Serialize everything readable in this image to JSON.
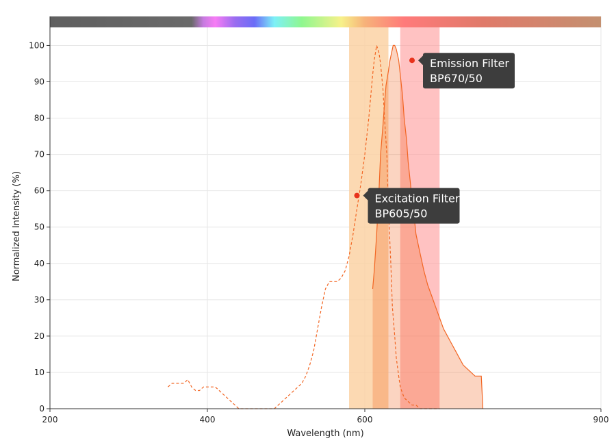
{
  "chart_data": {
    "type": "line",
    "xlabel": "Wavelength (nm)",
    "ylabel": "Normalized Intensity (%)",
    "xlim": [
      200,
      900
    ],
    "ylim": [
      0,
      108
    ],
    "x_ticks": [
      200,
      400,
      600,
      900
    ],
    "y_ticks": [
      0,
      10,
      20,
      30,
      40,
      50,
      60,
      70,
      80,
      90,
      100
    ],
    "grid": true,
    "spectrum_bar": {
      "start": 200,
      "end": 900,
      "colors": [
        {
          "at": 200,
          "color": "#5f5f5f"
        },
        {
          "at": 380,
          "color": "#6a6a6a"
        },
        {
          "at": 395,
          "color": "#c77be0"
        },
        {
          "at": 410,
          "color": "#f77df5"
        },
        {
          "at": 435,
          "color": "#9a6df0"
        },
        {
          "at": 460,
          "color": "#6b6df7"
        },
        {
          "at": 485,
          "color": "#7df0f7"
        },
        {
          "at": 520,
          "color": "#8ff78f"
        },
        {
          "at": 570,
          "color": "#f7f18a"
        },
        {
          "at": 600,
          "color": "#f7b27a"
        },
        {
          "at": 650,
          "color": "#ff7a7a"
        },
        {
          "at": 750,
          "color": "#e07a6a"
        },
        {
          "at": 900,
          "color": "#c49070"
        }
      ]
    },
    "filters": [
      {
        "name": "Excitation Filter",
        "code": "BP605/50",
        "start": 580,
        "end": 630,
        "color": "#fbcf9f",
        "opacity": 0.8
      },
      {
        "name": "Emission Filter",
        "code": "BP670/50",
        "start": 645,
        "end": 695,
        "color": "#ff9a9a",
        "opacity": 0.6
      }
    ],
    "series": [
      {
        "type": "excitation",
        "style": "dashed",
        "color": "#f26522",
        "x": [
          350,
          355,
          360,
          365,
          370,
          375,
          380,
          385,
          390,
          395,
          400,
          405,
          410,
          415,
          420,
          425,
          430,
          435,
          440,
          445,
          450,
          455,
          460,
          465,
          470,
          475,
          480,
          485,
          490,
          495,
          500,
          505,
          510,
          515,
          520,
          525,
          530,
          535,
          540,
          545,
          550,
          555,
          560,
          565,
          570,
          575,
          580,
          585,
          590,
          595,
          600,
          605,
          610,
          612,
          615,
          618,
          620,
          623,
          625,
          628,
          630,
          633,
          635,
          638,
          640,
          643,
          645,
          650,
          655,
          660,
          665,
          670,
          675,
          680,
          685,
          690,
          695
        ],
        "y": [
          6,
          7,
          7,
          7,
          7,
          8,
          6,
          5,
          5,
          6,
          6,
          6,
          6,
          5,
          4,
          3,
          2,
          1,
          0,
          0,
          0,
          0,
          0,
          0,
          0,
          0,
          0,
          0,
          1,
          2,
          3,
          4,
          5,
          6,
          7,
          9,
          12,
          16,
          22,
          28,
          33,
          35,
          35,
          35,
          36,
          38,
          42,
          48,
          55,
          62,
          70,
          80,
          92,
          96,
          100,
          98,
          95,
          88,
          80,
          70,
          55,
          40,
          28,
          20,
          14,
          9,
          6,
          3,
          2,
          1,
          1,
          0,
          0,
          0,
          0,
          0,
          0
        ]
      },
      {
        "type": "emission",
        "style": "solid",
        "color": "#f26522",
        "x": [
          610,
          612,
          615,
          618,
          620,
          623,
          625,
          627,
          630,
          632,
          634,
          636,
          638,
          640,
          643,
          645,
          648,
          650,
          653,
          655,
          658,
          660,
          663,
          665,
          670,
          675,
          680,
          685,
          690,
          695,
          700,
          705,
          710,
          715,
          720,
          725,
          730,
          735,
          740,
          745,
          748,
          750
        ],
        "y": [
          33,
          38,
          48,
          60,
          70,
          78,
          84,
          89,
          93,
          96,
          98,
          100,
          100,
          99,
          96,
          92,
          86,
          80,
          74,
          68,
          62,
          57,
          52,
          48,
          43,
          38,
          34,
          31,
          28,
          25,
          22,
          20,
          18,
          16,
          14,
          12,
          11,
          10,
          9,
          9,
          9,
          0
        ]
      }
    ],
    "annotations": [
      {
        "line1": "Excitation Filter",
        "line2": "BP605/50",
        "x": 590,
        "y": 58.7
      },
      {
        "line1": "Emission Filter",
        "line2": "BP670/50",
        "x": 660,
        "y": 95.9
      }
    ]
  }
}
